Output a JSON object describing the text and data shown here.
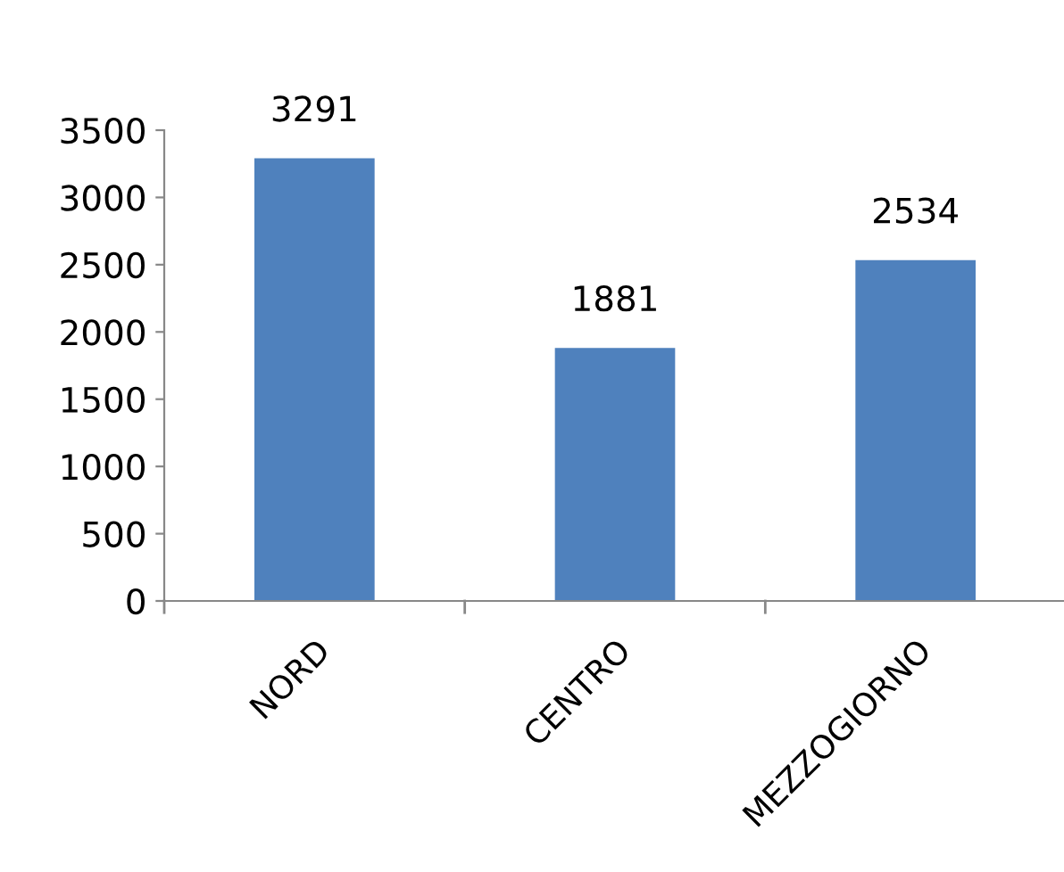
{
  "chart_data": {
    "type": "bar",
    "categories": [
      "NORD",
      "CENTRO",
      "MEZZOGIORNO"
    ],
    "values": [
      3291,
      1881,
      2534
    ],
    "color": "#4f81bd",
    "ylim": [
      0,
      3500
    ],
    "yticks": [
      0,
      500,
      1000,
      1500,
      2000,
      2500,
      3000,
      3500
    ],
    "data_labels": true,
    "grid": false,
    "legend": false
  }
}
